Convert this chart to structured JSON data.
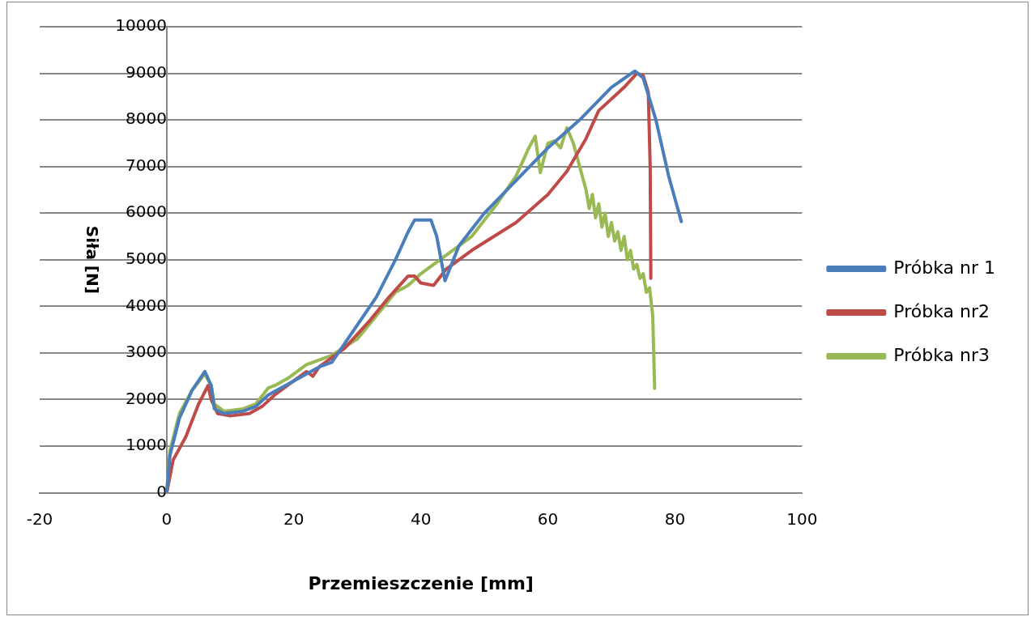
{
  "chart_data": {
    "type": "line",
    "xlabel": "Przemieszczenie [mm]",
    "ylabel": "Siła [N]",
    "xlim": [
      -20,
      100
    ],
    "xticks": [
      -20,
      0,
      20,
      40,
      60,
      80,
      100
    ],
    "ylim": [
      0,
      10000
    ],
    "yticks": [
      0,
      1000,
      2000,
      3000,
      4000,
      5000,
      6000,
      7000,
      8000,
      9000,
      10000
    ],
    "grid": "y",
    "legend": "right",
    "marker": "none",
    "line_style": "solid",
    "series": [
      {
        "name": "Próbka nr 1",
        "color": "#4a7ebb",
        "x": [
          0,
          0.5,
          2,
          4,
          6,
          7,
          7.5,
          9,
          12,
          14,
          16,
          20,
          24,
          26,
          28,
          30,
          33,
          36,
          38,
          39,
          41.6,
          42.5,
          43.8,
          46,
          50,
          55,
          60,
          65,
          70,
          73.7,
          75,
          77,
          79,
          81
        ],
        "values": [
          0,
          800,
          1600,
          2200,
          2600,
          2300,
          1800,
          1700,
          1750,
          1850,
          2100,
          2400,
          2700,
          2800,
          3200,
          3600,
          4200,
          5000,
          5600,
          5850,
          5850,
          5500,
          4550,
          5300,
          6000,
          6700,
          7400,
          8000,
          8700,
          9050,
          8900,
          8000,
          6800,
          5820
        ]
      },
      {
        "name": "Próbka nr2",
        "color": "#be4b48",
        "x": [
          0,
          1,
          3,
          5,
          6.5,
          7,
          8,
          10,
          13,
          15,
          17,
          20,
          22,
          23,
          24,
          28,
          32,
          35,
          38,
          39,
          40,
          42,
          44,
          48,
          55,
          60,
          63,
          66,
          68,
          72,
          74,
          75,
          75.8,
          76.1,
          76.2
        ],
        "values": [
          0,
          700,
          1200,
          1900,
          2300,
          2000,
          1700,
          1650,
          1700,
          1850,
          2100,
          2400,
          2600,
          2500,
          2700,
          3100,
          3700,
          4200,
          4650,
          4650,
          4500,
          4450,
          4800,
          5200,
          5800,
          6400,
          6900,
          7600,
          8200,
          8700,
          9000,
          8950,
          8600,
          7000,
          4600
        ]
      },
      {
        "name": "Próbka nr3",
        "color": "#98b954",
        "x": [
          0,
          0.5,
          2,
          4,
          6,
          7,
          7.5,
          9,
          12,
          14,
          16,
          17,
          19,
          22,
          26,
          30,
          33,
          36,
          38,
          40,
          44,
          48,
          52,
          55,
          57,
          58,
          58.8,
          60,
          61,
          62,
          63,
          64,
          65,
          66,
          66.5,
          67,
          67.5,
          68,
          68.5,
          69,
          69.5,
          70,
          70.5,
          71,
          71.5,
          72,
          72.5,
          73,
          73.5,
          74,
          74.5,
          75,
          75.5,
          76,
          76.5,
          76.8
        ],
        "values": [
          0,
          900,
          1700,
          2200,
          2550,
          2300,
          1900,
          1750,
          1800,
          1900,
          2250,
          2300,
          2450,
          2750,
          2950,
          3300,
          3800,
          4300,
          4450,
          4700,
          5100,
          5500,
          6200,
          6800,
          7400,
          7650,
          6870,
          7500,
          7550,
          7400,
          7830,
          7500,
          7000,
          6500,
          6100,
          6400,
          5900,
          6200,
          5700,
          6000,
          5500,
          5800,
          5400,
          5600,
          5200,
          5500,
          5000,
          5200,
          4800,
          4900,
          4600,
          4700,
          4300,
          4400,
          3800,
          2240
        ]
      }
    ]
  }
}
